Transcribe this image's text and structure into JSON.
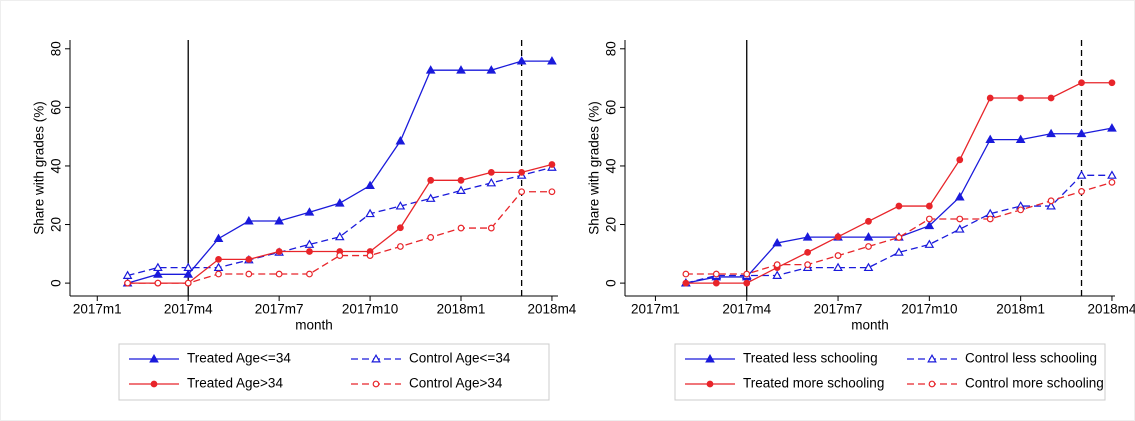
{
  "chart_data": [
    {
      "type": "line",
      "x_label": "month",
      "y_label": "Share with grades (%)",
      "grid": false,
      "x": [
        1,
        2,
        3,
        4,
        5,
        6,
        7,
        8,
        9,
        10,
        11,
        12,
        13,
        14,
        15
      ],
      "xlim": [
        -0.9,
        15.2
      ],
      "xticks": [
        {
          "value": 0,
          "label": "2017m1"
        },
        {
          "value": 3,
          "label": "2017m4"
        },
        {
          "value": 6,
          "label": "2017m7"
        },
        {
          "value": 9,
          "label": "2017m10"
        },
        {
          "value": 12,
          "label": "2018m1"
        },
        {
          "value": 15,
          "label": "2018m4"
        }
      ],
      "ylim": [
        -4.4,
        83
      ],
      "yticks": [
        0,
        20,
        40,
        60,
        80
      ],
      "vlines": [
        {
          "value": 3,
          "style": "solid"
        },
        {
          "value": 14,
          "style": "dashed"
        }
      ],
      "series": [
        {
          "name": "Treated Age<=34",
          "color": "#1a1adb",
          "style": "solid",
          "marker": "triangle",
          "hollow": false,
          "values": [
            0,
            3,
            3,
            15.2,
            21.2,
            21.2,
            24.2,
            27.3,
            33.3,
            48.5,
            72.7,
            72.7,
            72.7,
            75.8,
            75.8
          ]
        },
        {
          "name": "Control Age<=34",
          "color": "#1a1adb",
          "style": "dashed",
          "marker": "triangle",
          "hollow": true,
          "values": [
            2.6,
            5.3,
            5.3,
            5.3,
            7.9,
            10.5,
            13.2,
            15.8,
            23.7,
            26.3,
            28.9,
            31.6,
            34.2,
            36.8,
            39.5
          ]
        },
        {
          "name": "Treated Age>34",
          "color": "#e8252a",
          "style": "solid",
          "marker": "circle",
          "hollow": false,
          "values": [
            0,
            0,
            0,
            8.1,
            8.1,
            10.8,
            10.8,
            10.8,
            10.8,
            18.9,
            35.1,
            35.1,
            37.8,
            37.8,
            40.5
          ]
        },
        {
          "name": "Control Age>34",
          "color": "#e8252a",
          "style": "dashed",
          "marker": "circle",
          "hollow": true,
          "values": [
            0,
            0,
            0,
            3.1,
            3.1,
            3.1,
            3.1,
            9.4,
            9.4,
            12.5,
            15.6,
            18.8,
            18.8,
            31.2,
            31.2
          ]
        }
      ]
    },
    {
      "type": "line",
      "x_label": "month",
      "y_label": "Share with grades (%)",
      "grid": false,
      "x": [
        1,
        2,
        3,
        4,
        5,
        6,
        7,
        8,
        9,
        10,
        11,
        12,
        13,
        14,
        15
      ],
      "xlim": [
        -1,
        15.1
      ],
      "xticks": [
        {
          "value": 0,
          "label": "2017m1"
        },
        {
          "value": 3,
          "label": "2017m4"
        },
        {
          "value": 6,
          "label": "2017m7"
        },
        {
          "value": 9,
          "label": "2017m10"
        },
        {
          "value": 12,
          "label": "2018m1"
        },
        {
          "value": 15,
          "label": "2018m4"
        }
      ],
      "ylim": [
        -4.4,
        83
      ],
      "yticks": [
        0,
        20,
        40,
        60,
        80
      ],
      "vlines": [
        {
          "value": 3,
          "style": "solid"
        },
        {
          "value": 14,
          "style": "dashed"
        }
      ],
      "series": [
        {
          "name": "Treated less schooling",
          "color": "#1a1adb",
          "style": "solid",
          "marker": "triangle",
          "hollow": false,
          "values": [
            0,
            2.1,
            2.1,
            13.7,
            15.7,
            15.7,
            15.7,
            15.7,
            19.6,
            29.4,
            49,
            49,
            51,
            51,
            52.9
          ]
        },
        {
          "name": "Control less schooling",
          "color": "#1a1adb",
          "style": "dashed",
          "marker": "triangle",
          "hollow": true,
          "values": [
            0,
            2.6,
            2.6,
            2.6,
            5.3,
            5.3,
            5.3,
            10.5,
            13.2,
            18.4,
            23.7,
            26.3,
            26.3,
            36.8,
            36.8
          ]
        },
        {
          "name": "Treated more schooling",
          "color": "#e8252a",
          "style": "solid",
          "marker": "circle",
          "hollow": false,
          "values": [
            0,
            0,
            0,
            5.3,
            10.5,
            15.8,
            21.1,
            26.3,
            26.3,
            42.1,
            63.2,
            63.2,
            63.2,
            68.4,
            68.4
          ]
        },
        {
          "name": "Control more schooling",
          "color": "#e8252a",
          "style": "dashed",
          "marker": "circle",
          "hollow": true,
          "values": [
            3.1,
            3.1,
            3.1,
            6.3,
            6.3,
            9.4,
            12.5,
            15.6,
            21.9,
            21.9,
            21.9,
            25,
            28.1,
            31.3,
            34.4
          ]
        }
      ]
    }
  ]
}
